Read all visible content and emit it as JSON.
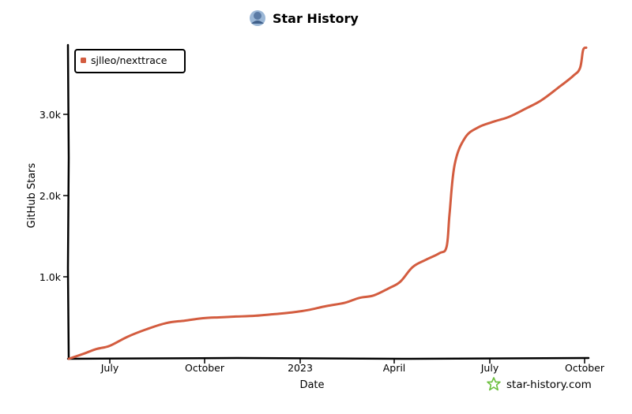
{
  "chart_data": {
    "type": "line",
    "title": "Star History",
    "xlabel": "Date",
    "ylabel": "GitHub Stars",
    "x_ticks": [
      "July",
      "October",
      "2023",
      "April",
      "July",
      "October"
    ],
    "y_ticks": [
      "1.0k",
      "2.0k",
      "3.0k"
    ],
    "ylim": [
      0,
      3850
    ],
    "legend_position": "top-left",
    "watermark": "star-history.com",
    "series": [
      {
        "name": "sjlleo/nexttrace",
        "color": "#d35c3f",
        "x_start": "2022-05-22",
        "x": [
          "2022-05-22",
          "2022-06-05",
          "2022-06-18",
          "2022-07-01",
          "2022-07-18",
          "2022-08-05",
          "2022-08-25",
          "2022-09-12",
          "2022-09-30",
          "2022-10-15",
          "2022-11-01",
          "2022-11-20",
          "2022-12-08",
          "2022-12-25",
          "2023-01-10",
          "2023-01-28",
          "2023-02-15",
          "2023-03-01",
          "2023-03-15",
          "2023-03-30",
          "2023-04-10",
          "2023-04-22",
          "2023-05-05",
          "2023-05-18",
          "2023-05-25",
          "2023-05-28",
          "2023-06-02",
          "2023-06-12",
          "2023-06-25",
          "2023-07-10",
          "2023-07-25",
          "2023-08-10",
          "2023-08-25",
          "2023-09-10",
          "2023-09-25",
          "2023-10-02",
          "2023-10-05",
          "2023-10-08"
        ],
        "y": [
          0,
          60,
          120,
          160,
          270,
          360,
          440,
          470,
          500,
          510,
          520,
          530,
          550,
          570,
          600,
          650,
          690,
          750,
          780,
          870,
          950,
          1130,
          1220,
          1300,
          1380,
          1800,
          2400,
          2720,
          2850,
          2920,
          2980,
          3080,
          3180,
          3330,
          3480,
          3580,
          3800,
          3830
        ]
      }
    ]
  }
}
